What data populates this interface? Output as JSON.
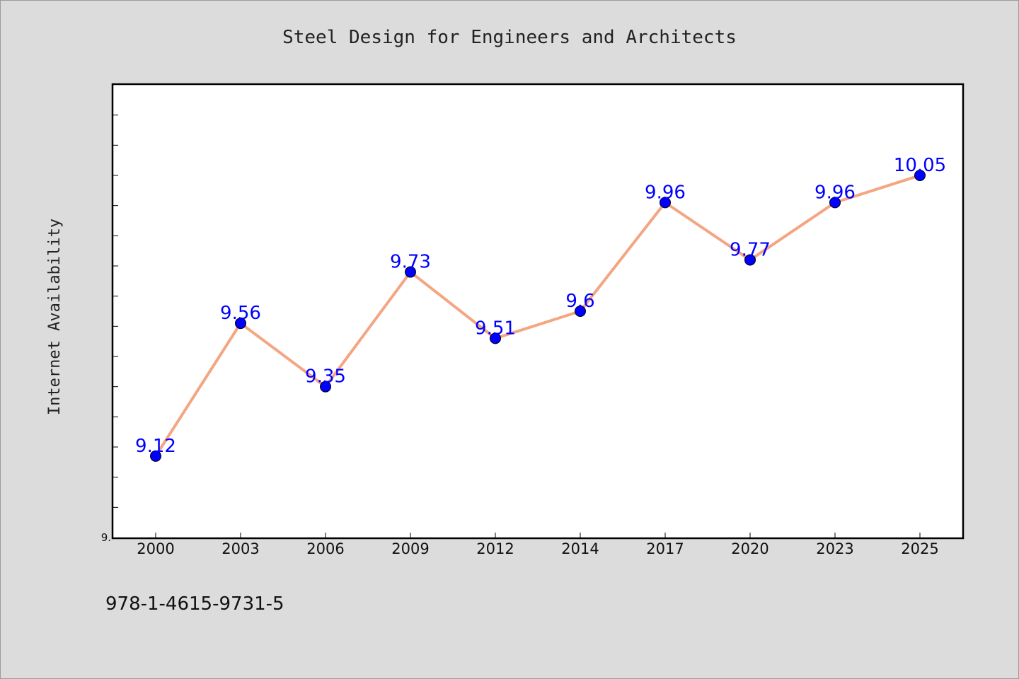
{
  "chart_data": {
    "type": "line",
    "title": "Steel Design for Engineers and Architects",
    "xlabel": "",
    "ylabel": "Internet Availability",
    "categories": [
      "2000",
      "2003",
      "2006",
      "2009",
      "2012",
      "2014",
      "2017",
      "2020",
      "2023",
      "2025"
    ],
    "series": [
      {
        "values": [
          9.12,
          9.56,
          9.35,
          9.73,
          9.51,
          9.6,
          9.96,
          9.77,
          9.96,
          10.05
        ]
      }
    ],
    "ylim": [
      8.85,
      10.35
    ],
    "y_tick_label": "9.",
    "y_tick_value": 8.85,
    "y_minor_step": 0.1,
    "grid": false,
    "legend": "none"
  },
  "footer": {
    "isbn": "978-1-4615-9731-5"
  },
  "colors": {
    "background": "#dcdcdc",
    "plot_background": "#ffffff",
    "line": "#f4a582",
    "marker": "#0000ff",
    "data_label": "#0000ff"
  }
}
